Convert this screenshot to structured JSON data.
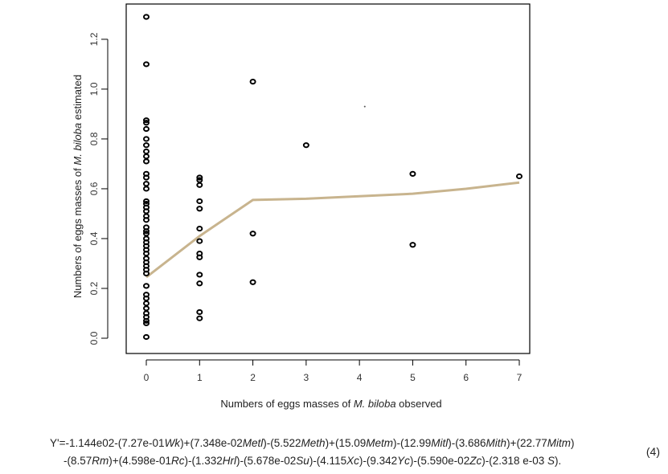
{
  "chart_data": {
    "type": "scatter",
    "xlabel_parts": [
      "Numbers of eggs masses of ",
      "M. biloba",
      "  observed"
    ],
    "ylabel_parts": [
      "Numbers of eggs masses of ",
      "M. biloba",
      " estimated"
    ],
    "xlim": [
      0,
      7
    ],
    "ylim": [
      0,
      1.3
    ],
    "x_ticks": [
      "0",
      "1",
      "2",
      "3",
      "4",
      "5",
      "6",
      "7"
    ],
    "y_ticks": [
      "0.0",
      "0.2",
      "0.4",
      "0.6",
      "0.8",
      "1.0",
      "1.2"
    ],
    "grid": false,
    "points": [
      {
        "x": 0,
        "y": 1.29
      },
      {
        "x": 0,
        "y": 1.1
      },
      {
        "x": 0,
        "y": 0.875
      },
      {
        "x": 0,
        "y": 0.865
      },
      {
        "x": 0,
        "y": 0.84
      },
      {
        "x": 0,
        "y": 0.8
      },
      {
        "x": 0,
        "y": 0.775
      },
      {
        "x": 0,
        "y": 0.75
      },
      {
        "x": 0,
        "y": 0.73
      },
      {
        "x": 0,
        "y": 0.71
      },
      {
        "x": 0,
        "y": 0.66
      },
      {
        "x": 0,
        "y": 0.645
      },
      {
        "x": 0,
        "y": 0.62
      },
      {
        "x": 0,
        "y": 0.6
      },
      {
        "x": 0,
        "y": 0.55
      },
      {
        "x": 0,
        "y": 0.54
      },
      {
        "x": 0,
        "y": 0.525
      },
      {
        "x": 0,
        "y": 0.51
      },
      {
        "x": 0,
        "y": 0.49
      },
      {
        "x": 0,
        "y": 0.475
      },
      {
        "x": 0,
        "y": 0.445
      },
      {
        "x": 0,
        "y": 0.43
      },
      {
        "x": 0,
        "y": 0.42
      },
      {
        "x": 0,
        "y": 0.4
      },
      {
        "x": 0,
        "y": 0.385
      },
      {
        "x": 0,
        "y": 0.37
      },
      {
        "x": 0,
        "y": 0.355
      },
      {
        "x": 0,
        "y": 0.34
      },
      {
        "x": 0,
        "y": 0.32
      },
      {
        "x": 0,
        "y": 0.305
      },
      {
        "x": 0,
        "y": 0.29
      },
      {
        "x": 0,
        "y": 0.275
      },
      {
        "x": 0,
        "y": 0.26
      },
      {
        "x": 0,
        "y": 0.21
      },
      {
        "x": 0,
        "y": 0.175
      },
      {
        "x": 0,
        "y": 0.16
      },
      {
        "x": 0,
        "y": 0.14
      },
      {
        "x": 0,
        "y": 0.12
      },
      {
        "x": 0,
        "y": 0.1
      },
      {
        "x": 0,
        "y": 0.085
      },
      {
        "x": 0,
        "y": 0.07
      },
      {
        "x": 0,
        "y": 0.06
      },
      {
        "x": 0,
        "y": 0.005
      },
      {
        "x": 1,
        "y": 0.645
      },
      {
        "x": 1,
        "y": 0.635
      },
      {
        "x": 1,
        "y": 0.615
      },
      {
        "x": 1,
        "y": 0.55
      },
      {
        "x": 1,
        "y": 0.52
      },
      {
        "x": 1,
        "y": 0.44
      },
      {
        "x": 1,
        "y": 0.39
      },
      {
        "x": 1,
        "y": 0.34
      },
      {
        "x": 1,
        "y": 0.325
      },
      {
        "x": 1,
        "y": 0.255
      },
      {
        "x": 1,
        "y": 0.22
      },
      {
        "x": 1,
        "y": 0.105
      },
      {
        "x": 1,
        "y": 0.08
      },
      {
        "x": 2,
        "y": 1.03
      },
      {
        "x": 2,
        "y": 0.42
      },
      {
        "x": 2,
        "y": 0.225
      },
      {
        "x": 3,
        "y": 0.775
      },
      {
        "x": 5,
        "y": 0.66
      },
      {
        "x": 5,
        "y": 0.375
      },
      {
        "x": 7,
        "y": 0.65
      }
    ],
    "trend_line": [
      {
        "x": 0,
        "y": 0.245
      },
      {
        "x": 1,
        "y": 0.41
      },
      {
        "x": 2,
        "y": 0.555
      },
      {
        "x": 3,
        "y": 0.56
      },
      {
        "x": 4,
        "y": 0.57
      },
      {
        "x": 5,
        "y": 0.58
      },
      {
        "x": 6,
        "y": 0.6
      },
      {
        "x": 7,
        "y": 0.625
      }
    ],
    "trend_color": "#c8b48e",
    "point_color": "#000000",
    "stray_dot": {
      "x": 4.1,
      "y": 0.93
    }
  },
  "equation": {
    "line1": [
      [
        "Y'=-1.144e02-(7.27e-01",
        false
      ],
      [
        "Wk",
        true
      ],
      [
        ")+(7.348e-02",
        false
      ],
      [
        "Metl",
        true
      ],
      [
        ")-(5.522",
        false
      ],
      [
        "Meth",
        true
      ],
      [
        ")+(15.09",
        false
      ],
      [
        "Metm",
        true
      ],
      [
        ")-(12.99",
        false
      ],
      [
        "Mitl",
        true
      ],
      [
        ")-(3.686",
        false
      ],
      [
        "Mith",
        true
      ],
      [
        ")+(22.77",
        false
      ],
      [
        "Mitm",
        true
      ],
      [
        ")",
        false
      ]
    ],
    "line2": [
      [
        "-(8.57",
        false
      ],
      [
        "Rm",
        true
      ],
      [
        ")+(4.598e-01",
        false
      ],
      [
        "Rc",
        true
      ],
      [
        ")-(1.332",
        false
      ],
      [
        "Hrl",
        true
      ],
      [
        ")-(5.678e-02",
        false
      ],
      [
        "Su",
        true
      ],
      [
        ")-(4.115",
        false
      ],
      [
        "Xc",
        true
      ],
      [
        ")-(9.342",
        false
      ],
      [
        "Yc",
        true
      ],
      [
        ")-(5.590e-02",
        false
      ],
      [
        "Zc",
        true
      ],
      [
        ")-(2.318 e-03 ",
        false
      ],
      [
        "S",
        true
      ],
      [
        ").",
        false
      ]
    ],
    "number": "(4)"
  }
}
